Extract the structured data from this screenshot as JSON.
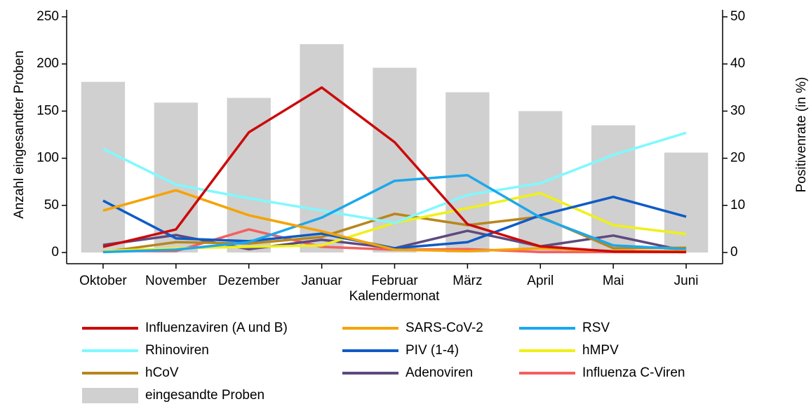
{
  "chart_data": {
    "type": "combo",
    "categories": [
      "Oktober",
      "November",
      "Dezember",
      "Januar",
      "Februar",
      "März",
      "April",
      "Mai",
      "Juni"
    ],
    "x_label": "Kalendermonat",
    "y_label": "Anzahl eingesandter Proben",
    "y2_label": "Positivenrate (in %)",
    "ylim": [
      0,
      250
    ],
    "yticks": [
      0,
      50,
      100,
      150,
      200,
      250
    ],
    "y2lim": [
      0,
      50
    ],
    "y2ticks": [
      0,
      10,
      20,
      30,
      40,
      50
    ],
    "series": [
      {
        "name": "Influenzaviren (A und B)",
        "type": "line",
        "axis": "y2",
        "color": "#cc0a0a",
        "values": [
          1.2,
          4.9,
          25.5,
          35,
          23.4,
          6,
          1.3,
          0.2,
          0.1
        ]
      },
      {
        "name": "SARS-CoV-2",
        "type": "line",
        "axis": "y2",
        "color": "#f5a300",
        "values": [
          8.9,
          13.2,
          7.9,
          4.5,
          0.6,
          0.3,
          0.9,
          0.3,
          0.3
        ]
      },
      {
        "name": "RSV",
        "type": "line",
        "axis": "y2",
        "color": "#1ba8ec",
        "values": [
          0.1,
          0.6,
          2.2,
          7.4,
          15.2,
          16.4,
          7.4,
          1.5,
          0.7
        ]
      },
      {
        "name": "Rhinoviren",
        "type": "line",
        "axis": "y2",
        "color": "#7ff9ff",
        "values": [
          22,
          14.4,
          11.5,
          8.9,
          6.3,
          12.2,
          14.7,
          20.7,
          25.4
        ]
      },
      {
        "name": "PIV (1-4)",
        "type": "line",
        "axis": "y2",
        "color": "#0e5bc7",
        "values": [
          11,
          3,
          2.4,
          4,
          0.9,
          2.2,
          7.9,
          11.8,
          7.6
        ]
      },
      {
        "name": "hMPV",
        "type": "line",
        "axis": "y2",
        "color": "#f0f018",
        "values": [
          0.3,
          0.9,
          1.2,
          1.5,
          6.3,
          9.4,
          12.6,
          5.8,
          3.9
        ]
      },
      {
        "name": "hCoV",
        "type": "line",
        "axis": "y2",
        "color": "#b8861c",
        "values": [
          0.1,
          2.2,
          1.9,
          3.3,
          8.2,
          5.8,
          7.6,
          0.9,
          1.0
        ]
      },
      {
        "name": "Adenoviren",
        "type": "line",
        "axis": "y2",
        "color": "#5e4a7e",
        "values": [
          1.6,
          3.7,
          0.7,
          2.7,
          0.9,
          4.6,
          1.3,
          3.6,
          0.3
        ]
      },
      {
        "name": "Influenza C-Viren",
        "type": "line",
        "axis": "y2",
        "color": "#f46060",
        "values": [
          0.3,
          0.3,
          4.9,
          1.2,
          0.6,
          0.7,
          0.1,
          0.1,
          0.1
        ]
      },
      {
        "name": "eingesandte Proben",
        "type": "bar",
        "color": "#d0d0d0",
        "values": [
          181,
          159,
          164,
          221,
          196,
          170,
          150,
          135,
          106
        ]
      }
    ]
  }
}
